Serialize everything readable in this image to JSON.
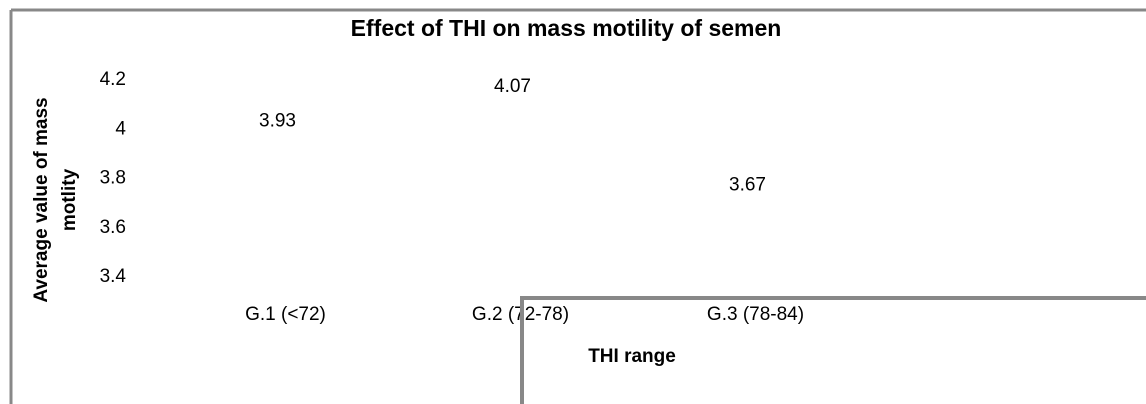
{
  "chart_data": {
    "type": "bar",
    "title": "Effect of THI on mass motility of semen",
    "x_label": "THI range",
    "y_label": [
      "Average value of mass",
      "motlity"
    ],
    "categories": [
      "G.1 (<72)",
      "G.2 (72-78)",
      "G.3 (78-84)"
    ],
    "values": [
      3.93,
      4.07,
      3.67
    ],
    "ylim": [
      3.4,
      4.2
    ],
    "yticks": [
      3.4,
      3.6,
      3.8,
      4,
      4.2
    ],
    "grid": false
  }
}
